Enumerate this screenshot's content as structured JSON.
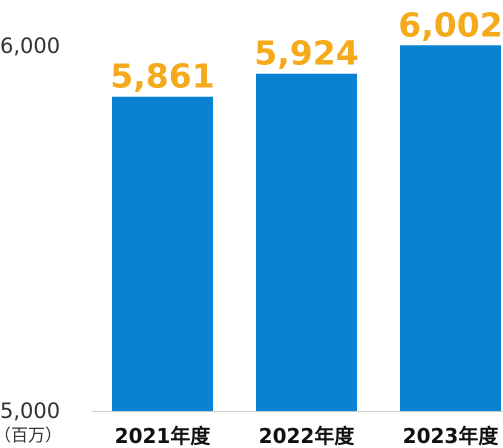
{
  "chart_data": {
    "type": "bar",
    "categories": [
      "2021年度",
      "2022年度",
      "2023年度"
    ],
    "values": [
      5861,
      5924,
      6002
    ],
    "data_labels": [
      "5,861",
      "5,924",
      "6,002"
    ],
    "ylim": [
      5000,
      6000
    ],
    "y_ticks": [
      {
        "value": 5000,
        "label": "5,000"
      },
      {
        "value": 6000,
        "label": "6,000"
      }
    ],
    "ylabel": "（百万）",
    "xlabel": "",
    "title": "",
    "grid": false,
    "legend": "none",
    "colors": {
      "bar": "#0a82d2",
      "data_label": "#f5aa1c",
      "axis": "#cccccc",
      "tick_text": "#333333",
      "category_text": "#111111"
    }
  }
}
